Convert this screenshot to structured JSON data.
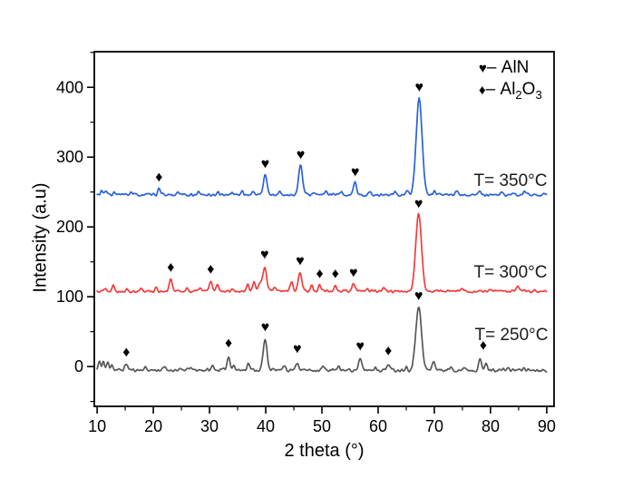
{
  "figure": {
    "trace_labels": [
      "T= 250°C",
      "T= 300°C",
      "T= 350°C"
    ]
  },
  "legend": {
    "items": [
      {
        "symbol": "♥",
        "sep": "–",
        "label": "AlN"
      },
      {
        "symbol": "♦",
        "sep": "–",
        "formula": {
          "base1": "Al",
          "sub1": "2",
          "base2": "O",
          "sub2": "3"
        }
      }
    ]
  },
  "chart_data": {
    "type": "line",
    "title": "",
    "xlabel": "2 theta (°)",
    "ylabel": "Intensity (a.u)",
    "xlim": [
      9.5,
      91.3
    ],
    "ylim": [
      -57,
      451
    ],
    "x_ticks": [
      10,
      20,
      30,
      40,
      50,
      60,
      70,
      80,
      90
    ],
    "x_minor_ticks": [
      15,
      25,
      35,
      45,
      55,
      65,
      75,
      85
    ],
    "y_ticks": [
      0,
      100,
      200,
      300,
      400
    ],
    "y_minor_ticks": [
      -50,
      50,
      150,
      250,
      350,
      450
    ],
    "grid": false,
    "legend_position": "top-right-inside",
    "marker_symbols": {
      "AlN": "♥",
      "Al2O3": "♦"
    },
    "series": [
      {
        "name": "T= 250°C",
        "color": "#575757",
        "baseline": -5,
        "noise_amplitude": 3.2,
        "seed": 11,
        "peaks": [
          [
            10.4,
            12,
            0.2
          ],
          [
            11.1,
            13,
            0.2
          ],
          [
            11.9,
            11,
            0.2
          ],
          [
            12.6,
            9,
            0.2
          ],
          [
            15.2,
            9,
            0.25
          ],
          [
            18.5,
            4,
            0.2
          ],
          [
            22.0,
            4,
            0.2
          ],
          [
            26.5,
            4,
            0.2
          ],
          [
            30.6,
            6,
            0.22
          ],
          [
            33.4,
            19,
            0.28
          ],
          [
            34.3,
            7,
            0.2
          ],
          [
            36.9,
            10,
            0.25
          ],
          [
            39.9,
            43,
            0.35
          ],
          [
            43.4,
            6,
            0.22
          ],
          [
            45.6,
            11,
            0.28
          ],
          [
            50.2,
            5,
            0.2
          ],
          [
            53.0,
            4,
            0.2
          ],
          [
            56.8,
            15,
            0.28
          ],
          [
            59.5,
            4,
            0.2
          ],
          [
            61.8,
            9,
            0.25
          ],
          [
            65.0,
            5,
            0.2
          ],
          [
            67.2,
            92,
            0.5
          ],
          [
            69.9,
            13,
            0.25
          ],
          [
            73.0,
            4,
            0.2
          ],
          [
            75.5,
            4,
            0.2
          ],
          [
            78.1,
            16,
            0.25
          ],
          [
            79.2,
            9,
            0.22
          ],
          [
            83.0,
            3,
            0.2
          ],
          [
            86.0,
            3,
            0.2
          ]
        ],
        "markers": [
          [
            "Al2O3",
            15.2,
            20
          ],
          [
            "Al2O3",
            33.4,
            33
          ],
          [
            "AlN",
            39.9,
            56
          ],
          [
            "AlN",
            45.6,
            25
          ],
          [
            "AlN",
            56.8,
            29
          ],
          [
            "Al2O3",
            61.8,
            22
          ],
          [
            "AlN",
            67.2,
            101
          ],
          [
            "Al2O3",
            78.7,
            30
          ]
        ]
      },
      {
        "name": "T= 300°C",
        "color": "#f23c3c",
        "baseline": 108,
        "noise_amplitude": 2.8,
        "seed": 22,
        "peaks": [
          [
            11.5,
            6,
            0.2
          ],
          [
            12.9,
            8,
            0.2
          ],
          [
            15.3,
            5,
            0.2
          ],
          [
            17.8,
            4,
            0.2
          ],
          [
            20.5,
            5,
            0.2
          ],
          [
            23.1,
            17,
            0.26
          ],
          [
            26.0,
            4,
            0.2
          ],
          [
            28.4,
            5,
            0.2
          ],
          [
            30.2,
            14,
            0.26
          ],
          [
            31.4,
            8,
            0.22
          ],
          [
            34.0,
            5,
            0.2
          ],
          [
            36.8,
            11,
            0.24
          ],
          [
            37.9,
            13,
            0.24
          ],
          [
            38.9,
            12,
            0.24
          ],
          [
            39.8,
            36,
            0.33
          ],
          [
            41.5,
            5,
            0.2
          ],
          [
            44.6,
            13,
            0.26
          ],
          [
            46.1,
            27,
            0.33
          ],
          [
            48.2,
            8,
            0.22
          ],
          [
            49.6,
            9,
            0.24
          ],
          [
            52.4,
            9,
            0.24
          ],
          [
            55.6,
            10,
            0.26
          ],
          [
            58.0,
            4,
            0.2
          ],
          [
            61.0,
            4,
            0.2
          ],
          [
            67.2,
            111,
            0.5
          ],
          [
            70.5,
            4,
            0.2
          ],
          [
            75.0,
            3,
            0.2
          ],
          [
            80.0,
            4,
            0.2
          ],
          [
            84.8,
            7,
            0.22
          ]
        ],
        "markers": [
          [
            "Al2O3",
            23.1,
            142
          ],
          [
            "Al2O3",
            30.2,
            139
          ],
          [
            "AlN",
            39.8,
            160
          ],
          [
            "AlN",
            46.1,
            151
          ],
          [
            "Al2O3",
            49.6,
            133
          ],
          [
            "Al2O3",
            52.4,
            133
          ],
          [
            "AlN",
            55.6,
            134
          ],
          [
            "AlN",
            67.2,
            233
          ]
        ]
      },
      {
        "name": "T= 350°C",
        "color": "#2a62d8",
        "baseline": 246,
        "noise_amplitude": 2.7,
        "seed": 33,
        "peaks": [
          [
            10.8,
            6,
            0.2
          ],
          [
            11.6,
            5,
            0.2
          ],
          [
            13.0,
            4,
            0.2
          ],
          [
            16.0,
            4,
            0.2
          ],
          [
            21.0,
            8,
            0.24
          ],
          [
            24.5,
            3,
            0.2
          ],
          [
            28.0,
            4,
            0.2
          ],
          [
            31.5,
            4,
            0.2
          ],
          [
            34.0,
            4,
            0.2
          ],
          [
            35.8,
            5,
            0.22
          ],
          [
            37.8,
            5,
            0.22
          ],
          [
            39.9,
            28,
            0.33
          ],
          [
            42.5,
            4,
            0.2
          ],
          [
            46.2,
            42,
            0.35
          ],
          [
            48.5,
            4,
            0.2
          ],
          [
            50.8,
            5,
            0.2
          ],
          [
            53.5,
            4,
            0.2
          ],
          [
            55.9,
            17,
            0.28
          ],
          [
            58.5,
            4,
            0.2
          ],
          [
            63.0,
            4,
            0.2
          ],
          [
            65.2,
            6,
            0.2
          ],
          [
            67.3,
            138,
            0.52
          ],
          [
            70.0,
            5,
            0.2
          ],
          [
            74.0,
            4,
            0.2
          ],
          [
            78.0,
            4,
            0.2
          ],
          [
            82.0,
            4,
            0.2
          ],
          [
            86.0,
            4,
            0.2
          ]
        ],
        "markers": [
          [
            "Al2O3",
            21.0,
            271
          ],
          [
            "AlN",
            39.9,
            290
          ],
          [
            "AlN",
            46.2,
            303
          ],
          [
            "AlN",
            55.9,
            278
          ],
          [
            "AlN",
            67.3,
            400
          ]
        ]
      }
    ]
  }
}
